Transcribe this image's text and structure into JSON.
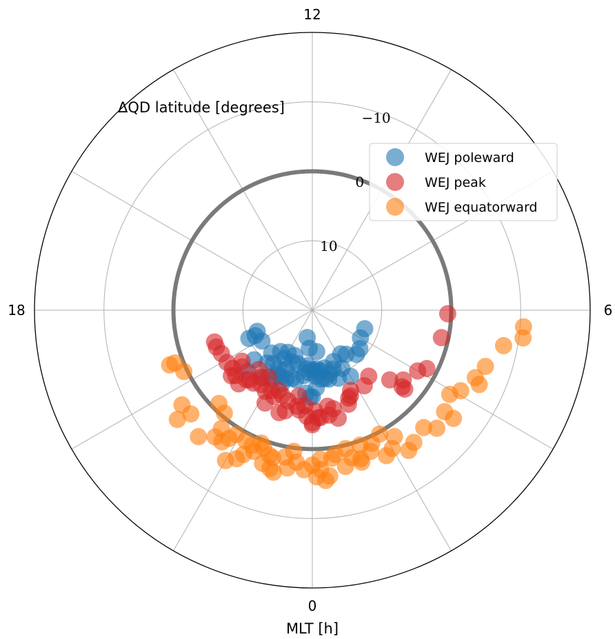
{
  "chart_data": {
    "type": "scatter",
    "projection": "polar",
    "theta_axis": {
      "label": "MLT [h]",
      "tick_labels": [
        {
          "mlt": 0,
          "label": "0"
        },
        {
          "mlt": 6,
          "label": "6"
        },
        {
          "mlt": 12,
          "label": "12"
        },
        {
          "mlt": 18,
          "label": "18"
        }
      ],
      "direction": "counterclockwise",
      "zero_location": "bottom"
    },
    "radial_axis": {
      "label": "ΔQD latitude [degrees]",
      "range": [
        -20,
        20
      ],
      "inverted": true,
      "tick_labels": [
        {
          "value": -10,
          "label": "−10"
        },
        {
          "value": 0,
          "label": "0"
        },
        {
          "value": 10,
          "label": "10"
        }
      ]
    },
    "reference_circle": {
      "value": 0,
      "color": "#7a7a7a"
    },
    "grid": true,
    "legend_position": "upper right",
    "series": [
      {
        "name": "WEJ poleward",
        "color": "#1f77b4",
        "points": [
          [
            -0.7,
            16.0
          ],
          [
            -0.3,
            14.5
          ],
          [
            -0.4,
            11.5
          ],
          [
            -0.3,
            12.0
          ],
          [
            -2.0,
            8.5
          ],
          [
            -1.9,
            9.5
          ],
          [
            -2.4,
            8.0
          ],
          [
            -1.7,
            9.5
          ],
          [
            -2.9,
            11.5
          ],
          [
            -2.7,
            10.0
          ],
          [
            -3.1,
            7.2
          ],
          [
            -1.5,
            8.5
          ],
          [
            -4.4,
            11.0
          ],
          [
            -4.4,
            10.0
          ],
          [
            -4.6,
            11.5
          ],
          [
            -3.9,
            11.5
          ],
          [
            -3.3,
            9.0
          ],
          [
            0.4,
            14.0
          ],
          [
            -0.2,
            11.0
          ],
          [
            -0.5,
            10.5
          ],
          [
            -0.9,
            9.7
          ],
          [
            -1.1,
            9.8
          ],
          [
            -1.4,
            9.5
          ],
          [
            -1.4,
            12.0
          ],
          [
            -1.4,
            13.0
          ],
          [
            -1.0,
            12.0
          ],
          [
            -1.6,
            10.7
          ],
          [
            -2.0,
            10.3
          ],
          [
            -2.0,
            12.0
          ],
          [
            -2.4,
            10.5
          ],
          [
            -2.5,
            12.5
          ],
          [
            -2.0,
            13.0
          ],
          [
            -0.3,
            8.0
          ],
          [
            -0.1,
            7.5
          ],
          [
            0.0,
            7.5
          ],
          [
            0.2,
            8.8
          ],
          [
            0.5,
            11.2
          ],
          [
            0.3,
            11.5
          ],
          [
            0.8,
            11.5
          ],
          [
            1.0,
            10.5
          ],
          [
            1.3,
            11.0
          ],
          [
            1.5,
            12.0
          ],
          [
            0.2,
            10.5
          ],
          [
            0.5,
            10.0
          ],
          [
            0.7,
            10.0
          ],
          [
            2.2,
            12.5
          ],
          [
            2.5,
            12.0
          ],
          [
            1.8,
            10.6
          ],
          [
            3.0,
            11.0
          ],
          [
            3.4,
            11.2
          ],
          [
            4.0,
            12.0
          ],
          [
            4.7,
            12.0
          ],
          [
            1.4,
            9.5
          ],
          [
            2.0,
            9.0
          ],
          [
            0.9,
            9.8
          ],
          [
            0.0,
            11.4
          ],
          [
            0.2,
            11.2
          ]
        ]
      },
      {
        "name": "WEJ peak",
        "color": "#d62728",
        "points": [
          [
            -4.3,
            5.5
          ],
          [
            -4.6,
            5.2
          ],
          [
            -4.8,
            5.2
          ],
          [
            -3.9,
            5.6
          ],
          [
            -3.6,
            7.5
          ],
          [
            -2.0,
            6.5
          ],
          [
            -1.5,
            7.5
          ],
          [
            -1.3,
            7.0
          ],
          [
            -1.2,
            4.5
          ],
          [
            -1.0,
            5.0
          ],
          [
            -0.6,
            6.0
          ],
          [
            -0.3,
            6.2
          ],
          [
            0.2,
            4.5
          ],
          [
            0.0,
            3.5
          ],
          [
            0.0,
            3.8
          ],
          [
            0.3,
            4.5
          ],
          [
            0.1,
            5.5
          ],
          [
            0.6,
            6.0
          ],
          [
            0.8,
            5.5
          ],
          [
            1.5,
            6.3
          ],
          [
            1.6,
            6.5
          ],
          [
            2.3,
            6.8
          ],
          [
            2.7,
            7.5
          ],
          [
            3.2,
            5.0
          ],
          [
            3.5,
            3.5
          ],
          [
            4.0,
            2.5
          ],
          [
            4.2,
            1.5
          ],
          [
            5.2,
            1.0
          ],
          [
            5.9,
            0.5
          ],
          [
            3.3,
            3.0
          ],
          [
            3.3,
            2.5
          ],
          [
            -2.6,
            6.5
          ],
          [
            -2.8,
            8.5
          ],
          [
            -2.3,
            7.0
          ],
          [
            -1.8,
            7.0
          ],
          [
            -3.4,
            5.0
          ],
          [
            -3.0,
            5.0
          ],
          [
            0.9,
            4.0
          ],
          [
            1.4,
            5.5
          ],
          [
            1.7,
            7.2
          ],
          [
            0.6,
            4.7
          ],
          [
            -0.6,
            7.5
          ],
          [
            -1.0,
            6.5
          ],
          [
            -2.2,
            8.5
          ],
          [
            -1.6,
            6.4
          ],
          [
            -0.5,
            5.5
          ],
          [
            -0.2,
            4.7
          ],
          [
            -1.8,
            5.0
          ],
          [
            -3.3,
            5.5
          ],
          [
            -3.6,
            5.8
          ],
          [
            -3.4,
            7.0
          ],
          [
            -2.9,
            6.2
          ],
          [
            -2.8,
            6.5
          ],
          [
            -2.5,
            7.8
          ]
        ]
      },
      {
        "name": "WEJ equatorward",
        "color": "#ff7f0e",
        "points": [
          [
            -4.6,
            -2.0
          ],
          [
            -4.6,
            -1.2
          ],
          [
            -4.3,
            -0.5
          ],
          [
            -3.6,
            -3.2
          ],
          [
            -3.3,
            -3.0
          ],
          [
            -3.4,
            -5.0
          ],
          [
            -3.0,
            1.0
          ],
          [
            -2.2,
            -2.0
          ],
          [
            -2.3,
            -3.0
          ],
          [
            -2.0,
            -5.0
          ],
          [
            -1.8,
            -4.0
          ],
          [
            -1.7,
            -3.0
          ],
          [
            -1.5,
            -2.0
          ],
          [
            -1.3,
            -1.0
          ],
          [
            -1.2,
            -3.2
          ],
          [
            -1.0,
            -2.0
          ],
          [
            -0.9,
            -4.0
          ],
          [
            -0.5,
            -0.5
          ],
          [
            -0.2,
            -3.0
          ],
          [
            0.0,
            -2.3
          ],
          [
            0.1,
            -4.0
          ],
          [
            0.2,
            -3.0
          ],
          [
            0.3,
            -4.6
          ],
          [
            0.6,
            -1.0
          ],
          [
            0.8,
            -3.0
          ],
          [
            1.0,
            -2.0
          ],
          [
            1.2,
            -2.5
          ],
          [
            1.5,
            -2.0
          ],
          [
            1.8,
            -3.5
          ],
          [
            2.0,
            -3.0
          ],
          [
            2.3,
            -4.5
          ],
          [
            2.5,
            -4.0
          ],
          [
            2.9,
            -3.3
          ],
          [
            3.1,
            -4.7
          ],
          [
            3.5,
            -5.6
          ],
          [
            3.5,
            -4.0
          ],
          [
            3.9,
            -3.2
          ],
          [
            4.4,
            -6.3
          ],
          [
            4.8,
            -6.2
          ],
          [
            5.3,
            -8.0
          ],
          [
            5.7,
            -10.5
          ],
          [
            5.5,
            -10.6
          ],
          [
            4.5,
            -5.4
          ],
          [
            4.1,
            -4.3
          ],
          [
            -0.4,
            -2.0
          ],
          [
            0.4,
            -4.0
          ],
          [
            1.2,
            -3.0
          ],
          [
            -2.7,
            0.5
          ],
          [
            -2.5,
            -1.5
          ],
          [
            -1.4,
            -0.5
          ],
          [
            -0.7,
            -1.5
          ],
          [
            0.5,
            -1.5
          ],
          [
            1.6,
            -1.0
          ],
          [
            0.9,
            -0.5
          ],
          [
            -0.6,
            -3.0
          ],
          [
            -1.0,
            -3.6
          ],
          [
            -2.1,
            -1.0
          ],
          [
            -2.5,
            -3.0
          ],
          [
            -2.8,
            -4.5
          ],
          [
            -1.6,
            -1.3
          ],
          [
            0.2,
            -1.5
          ],
          [
            1.3,
            -0.6
          ],
          [
            2.2,
            -1.7
          ],
          [
            1.9,
            -0.3
          ],
          [
            -1.1,
            -1.8
          ],
          [
            -1.8,
            -1.1
          ]
        ]
      }
    ]
  }
}
